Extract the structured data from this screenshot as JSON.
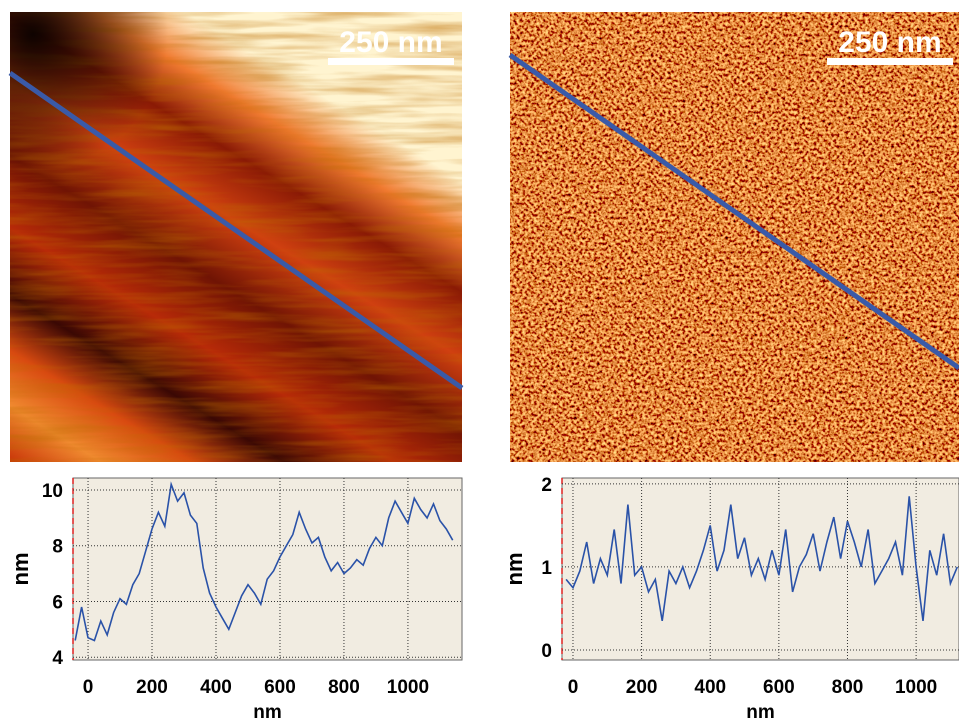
{
  "images": [
    {
      "scale_bar": "250 nm"
    },
    {
      "scale_bar": "250 nm"
    }
  ],
  "chart_data": [
    {
      "type": "line",
      "x_label": "nm",
      "y_label": "nm",
      "x": [
        -40,
        -20,
        0,
        20,
        40,
        60,
        80,
        100,
        120,
        140,
        160,
        180,
        200,
        220,
        240,
        260,
        280,
        300,
        320,
        340,
        360,
        380,
        400,
        420,
        440,
        460,
        480,
        500,
        520,
        540,
        560,
        580,
        600,
        620,
        640,
        660,
        680,
        700,
        720,
        740,
        760,
        780,
        800,
        820,
        840,
        860,
        880,
        900,
        920,
        940,
        960,
        980,
        1000,
        1020,
        1040,
        1060,
        1080,
        1100,
        1120,
        1140
      ],
      "series": [
        {
          "color": "#2a52a8",
          "values": [
            4.6,
            5.8,
            4.7,
            4.6,
            5.3,
            4.8,
            5.6,
            6.1,
            5.9,
            6.6,
            7.0,
            7.8,
            8.6,
            9.2,
            8.7,
            10.2,
            9.6,
            9.9,
            9.1,
            8.8,
            7.2,
            6.3,
            5.8,
            5.4,
            5.0,
            5.6,
            6.2,
            6.6,
            6.3,
            5.9,
            6.8,
            7.1,
            7.6,
            8.0,
            8.4,
            9.2,
            8.6,
            8.1,
            8.3,
            7.6,
            7.1,
            7.4,
            7.0,
            7.2,
            7.5,
            7.3,
            7.9,
            8.3,
            8.0,
            9.0,
            9.6,
            9.2,
            8.8,
            9.7,
            9.3,
            9.0,
            9.5,
            8.9,
            8.6,
            8.2
          ]
        }
      ],
      "xlim": [
        -47,
        1169
      ],
      "ylim": [
        3.9,
        10.43
      ],
      "xticks": [
        0,
        200,
        400,
        600,
        800,
        1000
      ],
      "yticks": [
        4,
        6,
        8,
        10
      ],
      "grid": true
    },
    {
      "type": "line",
      "x_label": "nm",
      "y_label": "nm",
      "x": [
        -20,
        0,
        20,
        40,
        60,
        80,
        100,
        120,
        140,
        160,
        180,
        200,
        220,
        240,
        260,
        280,
        300,
        320,
        340,
        360,
        380,
        400,
        420,
        440,
        460,
        480,
        500,
        520,
        540,
        560,
        580,
        600,
        620,
        640,
        660,
        680,
        700,
        720,
        740,
        760,
        780,
        800,
        820,
        840,
        860,
        880,
        900,
        920,
        940,
        960,
        980,
        1000,
        1020,
        1040,
        1060,
        1080,
        1100,
        1120
      ],
      "series": [
        {
          "color": "#2a52a8",
          "values": [
            0.85,
            0.75,
            0.95,
            1.3,
            0.8,
            1.1,
            0.9,
            1.45,
            0.8,
            1.75,
            0.9,
            1.0,
            0.7,
            0.85,
            0.35,
            0.95,
            0.8,
            1.0,
            0.75,
            0.95,
            1.2,
            1.5,
            0.95,
            1.2,
            1.75,
            1.1,
            1.35,
            0.9,
            1.1,
            0.85,
            1.2,
            0.9,
            1.45,
            0.7,
            1.0,
            1.15,
            1.4,
            0.95,
            1.3,
            1.6,
            1.1,
            1.55,
            1.3,
            1.0,
            1.45,
            0.8,
            0.95,
            1.1,
            1.3,
            0.9,
            1.85,
            1.0,
            0.35,
            1.2,
            0.9,
            1.4,
            0.8,
            1.0
          ]
        }
      ],
      "xlim": [
        -32,
        1125
      ],
      "ylim": [
        -0.12,
        2.07
      ],
      "xticks": [
        0,
        200,
        400,
        600,
        800,
        1000
      ],
      "yticks": [
        0,
        1,
        2
      ],
      "grid": true
    }
  ]
}
